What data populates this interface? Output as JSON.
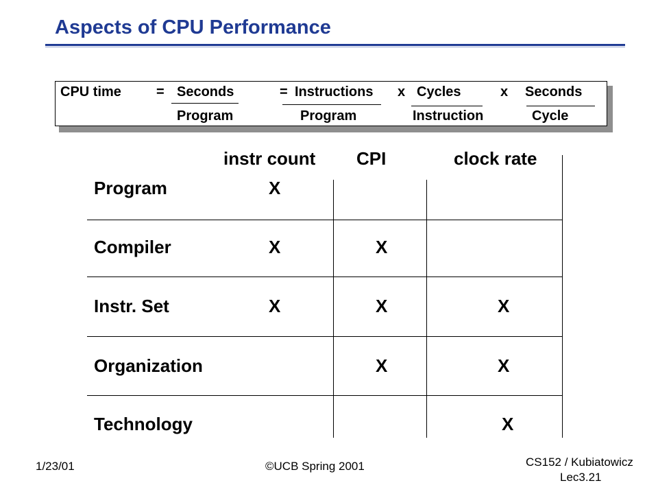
{
  "slide": {
    "title": "Aspects of CPU Performance",
    "formula": {
      "lhs": "CPU time",
      "eq1": "=",
      "seconds_num": "Seconds",
      "seconds_den": "Program",
      "eq2": "=",
      "instr_num": "Instructions",
      "instr_den": "Program",
      "times1": "x",
      "cycles_num": "Cycles",
      "cycles_den": "Instruction",
      "times2": "x",
      "sec_num": "Seconds",
      "sec_den": "Cycle"
    },
    "table": {
      "columns": [
        "instr count",
        "CPI",
        "clock rate"
      ],
      "rows": [
        {
          "label": "Program",
          "marks": [
            "X",
            "",
            ""
          ]
        },
        {
          "label": "Compiler",
          "marks": [
            "X",
            "X",
            ""
          ]
        },
        {
          "label": "Instr. Set",
          "marks": [
            "X",
            "X",
            "X"
          ]
        },
        {
          "label": "Organization",
          "marks": [
            "",
            "X",
            "X"
          ]
        },
        {
          "label": "Technology",
          "marks": [
            "",
            "",
            "X"
          ]
        }
      ]
    },
    "footer": {
      "date": "1/23/01",
      "copyright": "©UCB Spring 2001",
      "course": "CS152 / Kubiatowicz",
      "lecture": "Lec3.21"
    }
  }
}
